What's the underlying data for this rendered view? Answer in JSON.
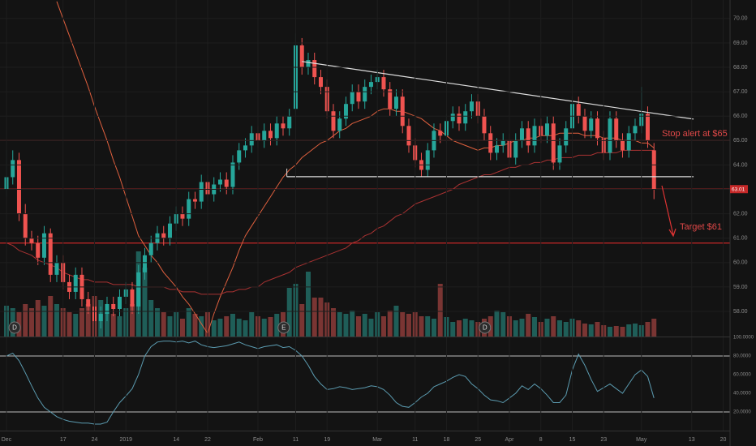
{
  "chart_data": {
    "type": "candlestick",
    "xlim": [
      -1.03,
      115.1
    ],
    "xticks": [
      {
        "value": 0,
        "label": "Dec"
      },
      {
        "value": 9,
        "label": "17"
      },
      {
        "value": 14,
        "label": "24"
      },
      {
        "value": 19,
        "label": "2019"
      },
      {
        "value": 27,
        "label": "14"
      },
      {
        "value": 32,
        "label": "22"
      },
      {
        "value": 40,
        "label": "Feb"
      },
      {
        "value": 46,
        "label": "11"
      },
      {
        "value": 51,
        "label": "19"
      },
      {
        "value": 59,
        "label": "Mar"
      },
      {
        "value": 65,
        "label": "11"
      },
      {
        "value": 70,
        "label": "18"
      },
      {
        "value": 75,
        "label": "25"
      },
      {
        "value": 80,
        "label": "Apr"
      },
      {
        "value": 85,
        "label": "8"
      },
      {
        "value": 90,
        "label": "15"
      },
      {
        "value": 95,
        "label": "23"
      },
      {
        "value": 101,
        "label": "May"
      },
      {
        "value": 109,
        "label": "13"
      },
      {
        "value": 114,
        "label": "20"
      }
    ],
    "ylim": [
      56.97,
      70.76
    ],
    "yticks": [
      {
        "value": 58,
        "label": "58.00"
      },
      {
        "value": 59,
        "label": "59.00"
      },
      {
        "value": 60,
        "label": "60.00"
      },
      {
        "value": 61,
        "label": "61.00"
      },
      {
        "value": 62,
        "label": "62.00"
      },
      {
        "value": 63,
        "label": "63.00"
      },
      {
        "value": 64,
        "label": "64.00"
      },
      {
        "value": 65,
        "label": "65.00"
      },
      {
        "value": 66,
        "label": "66.00"
      },
      {
        "value": 67,
        "label": "67.00"
      },
      {
        "value": 68,
        "label": "68.00"
      },
      {
        "value": 69,
        "label": "69.00"
      },
      {
        "value": 70,
        "label": "70.00"
      }
    ],
    "grid": true,
    "up_color": "#26a69a",
    "down_color": "#ef5350",
    "open": [
      63.0,
      63.5,
      64.2,
      62.0,
      61.0,
      60.8,
      60.2,
      61.2,
      59.5,
      60.0,
      59.2,
      58.8,
      59.5,
      58.5,
      58.2,
      57.6,
      57.9,
      58.3,
      58.1,
      58.6,
      58.9,
      58.2,
      59.6,
      60.3,
      60.8,
      61.2,
      61.0,
      61.6,
      62.0,
      61.8,
      62.6,
      62.5,
      63.3,
      62.8,
      63.2,
      63.4,
      63.1,
      64.1,
      64.6,
      64.8,
      65.3,
      65.0,
      65.4,
      65.1,
      65.7,
      65.5,
      66.3,
      68.9,
      68.0,
      68.3,
      67.6,
      67.2,
      66.2,
      65.4,
      65.9,
      66.5,
      67.0,
      66.6,
      67.2,
      67.4,
      67.6,
      67.1,
      66.3,
      66.8,
      65.6,
      64.8,
      64.2,
      63.8,
      64.6,
      65.4,
      65.2,
      65.8,
      66.1,
      65.7,
      66.2,
      66.6,
      66.0,
      65.3,
      64.5,
      64.8,
      65.0,
      64.3,
      65.0,
      65.5,
      64.8,
      65.6,
      65.2,
      65.7,
      64.1,
      64.8,
      65.5,
      66.5,
      66.0,
      65.4,
      65.9,
      65.1,
      64.5,
      65.9,
      65.0,
      64.6,
      65.3,
      65.6,
      66.1,
      64.6
    ],
    "high": [
      64.6,
      64.6,
      64.5,
      62.4,
      61.3,
      61.1,
      61.5,
      61.4,
      60.3,
      60.3,
      59.5,
      59.8,
      59.8,
      58.8,
      58.5,
      58.2,
      58.6,
      58.6,
      58.9,
      59.2,
      59.2,
      59.9,
      60.6,
      61.1,
      61.5,
      61.5,
      61.9,
      62.3,
      62.3,
      62.9,
      62.9,
      63.6,
      63.6,
      63.5,
      63.7,
      63.7,
      64.4,
      64.9,
      65.1,
      65.6,
      65.6,
      65.7,
      65.7,
      66.0,
      66.0,
      66.3,
      69.4,
      69.2,
      68.6,
      68.6,
      67.9,
      67.5,
      66.5,
      66.2,
      66.8,
      67.3,
      67.3,
      67.5,
      67.7,
      67.9,
      67.9,
      67.4,
      67.1,
      67.1,
      65.9,
      65.1,
      64.5,
      64.9,
      65.7,
      65.7,
      66.1,
      66.4,
      66.4,
      66.5,
      66.9,
      66.9,
      66.3,
      65.6,
      65.1,
      65.3,
      65.3,
      65.3,
      65.8,
      65.8,
      65.9,
      65.9,
      66.0,
      66.0,
      65.1,
      65.8,
      66.8,
      66.8,
      66.3,
      66.2,
      66.2,
      65.4,
      66.2,
      66.2,
      65.3,
      65.6,
      65.9,
      67.2,
      66.4,
      64.9
    ],
    "low": [
      62.7,
      63.2,
      61.7,
      60.7,
      60.5,
      59.9,
      59.9,
      59.2,
      59.2,
      58.9,
      58.5,
      58.5,
      58.2,
      57.9,
      57.3,
      57.3,
      57.6,
      57.8,
      57.8,
      58.3,
      57.9,
      57.9,
      59.3,
      60.0,
      60.5,
      60.7,
      60.7,
      61.3,
      61.5,
      61.5,
      62.2,
      62.2,
      62.5,
      62.5,
      62.9,
      62.8,
      62.8,
      63.8,
      64.3,
      64.5,
      64.7,
      64.7,
      64.8,
      64.8,
      65.2,
      65.2,
      66.0,
      67.7,
      67.7,
      67.3,
      66.9,
      65.9,
      65.1,
      65.1,
      65.6,
      66.2,
      66.3,
      66.3,
      66.9,
      67.1,
      66.8,
      66.0,
      66.0,
      65.3,
      64.5,
      63.9,
      63.5,
      63.5,
      64.3,
      64.9,
      64.9,
      65.5,
      65.4,
      65.4,
      65.9,
      65.7,
      65.0,
      64.2,
      64.2,
      64.5,
      64.0,
      64.0,
      64.7,
      64.5,
      64.5,
      64.9,
      64.9,
      63.8,
      63.8,
      64.5,
      65.2,
      65.7,
      65.1,
      65.1,
      64.8,
      64.2,
      64.2,
      64.7,
      64.3,
      64.3,
      65.0,
      65.3,
      64.7,
      62.6
    ],
    "close": [
      63.5,
      64.2,
      62.0,
      61.0,
      60.8,
      60.2,
      61.2,
      59.5,
      60.0,
      59.2,
      58.8,
      59.5,
      58.5,
      58.2,
      57.6,
      57.9,
      58.3,
      58.1,
      58.6,
      58.9,
      58.2,
      59.6,
      60.3,
      60.8,
      61.2,
      61.0,
      61.6,
      62.0,
      61.8,
      62.6,
      62.5,
      63.3,
      62.8,
      63.2,
      63.4,
      63.1,
      64.1,
      64.6,
      64.8,
      65.3,
      65.0,
      65.4,
      65.1,
      65.7,
      65.5,
      66.0,
      68.9,
      68.0,
      68.3,
      67.6,
      67.2,
      66.2,
      65.4,
      65.9,
      66.5,
      67.0,
      66.6,
      67.2,
      67.4,
      67.6,
      67.1,
      66.3,
      66.8,
      65.6,
      64.8,
      64.2,
      63.8,
      64.6,
      65.4,
      65.2,
      65.8,
      66.1,
      65.7,
      66.2,
      66.6,
      66.0,
      65.3,
      64.5,
      64.8,
      65.0,
      64.3,
      65.0,
      65.5,
      64.8,
      65.6,
      65.2,
      65.7,
      64.1,
      64.8,
      65.5,
      66.5,
      66.0,
      65.4,
      65.9,
      65.1,
      64.5,
      65.9,
      65.0,
      64.6,
      65.3,
      65.6,
      66.1,
      65.0,
      63.01
    ],
    "volume": {
      "up_color": "#1f5e58",
      "down_color": "#7a3533",
      "values": [
        38,
        35,
        30,
        40,
        35,
        45,
        38,
        50,
        40,
        35,
        30,
        28,
        35,
        40,
        50,
        45,
        30,
        28,
        25,
        35,
        40,
        105,
        85,
        45,
        35,
        30,
        25,
        30,
        22,
        35,
        28,
        25,
        30,
        20,
        22,
        25,
        28,
        22,
        20,
        30,
        25,
        22,
        24,
        28,
        30,
        60,
        65,
        40,
        80,
        48,
        48,
        42,
        35,
        30,
        28,
        32,
        25,
        28,
        22,
        30,
        25,
        32,
        38,
        30,
        28,
        30,
        25,
        25,
        22,
        65,
        24,
        18,
        20,
        22,
        20,
        18,
        22,
        25,
        32,
        30,
        25,
        20,
        22,
        28,
        24,
        18,
        22,
        25,
        20,
        18,
        22,
        20,
        16,
        15,
        18,
        14,
        12,
        13,
        12,
        15,
        16,
        14,
        18,
        22
      ]
    },
    "moving_averages": [
      {
        "color": "#e0603e",
        "values": [
          null,
          null,
          null,
          null,
          null,
          null,
          null,
          null,
          70.7,
          70.0,
          69.3,
          68.6,
          67.9,
          67.2,
          66.4,
          65.7,
          65.0,
          64.2,
          63.5,
          62.7,
          61.9,
          61.1,
          60.7,
          60.3,
          60.0,
          59.6,
          59.3,
          59.0,
          58.6,
          58.3,
          57.9,
          57.5,
          57.1,
          57.9,
          58.6,
          59.2,
          59.8,
          60.5,
          61.1,
          61.5,
          61.9,
          62.3,
          62.7,
          63.1,
          63.5,
          63.8,
          64.0,
          64.3,
          64.5,
          64.7,
          64.9,
          65.0,
          65.2,
          65.4,
          65.5,
          65.7,
          65.8,
          65.9,
          66.0,
          66.2,
          66.3,
          66.3,
          66.2,
          66.2,
          66.1,
          66.0,
          65.9,
          65.7,
          65.5,
          65.4,
          65.2,
          65.0,
          64.9,
          64.8,
          64.7,
          64.6,
          64.7,
          64.7,
          64.8,
          64.8,
          64.9,
          65.0,
          65.0,
          65.1,
          65.1,
          65.2,
          65.2,
          65.2,
          65.3,
          65.3,
          65.3,
          65.3,
          65.2,
          65.2,
          65.2,
          65.1,
          65.1,
          65.1,
          65.0,
          65.0,
          65.0,
          64.9,
          64.9,
          64.7
        ]
      },
      {
        "color": "#a83232",
        "values": [
          60.8,
          60.7,
          60.5,
          60.4,
          60.3,
          60.1,
          60.0,
          59.9,
          59.8,
          59.6,
          59.5,
          59.4,
          59.3,
          59.3,
          59.2,
          59.2,
          59.2,
          59.1,
          59.1,
          59.1,
          59.1,
          59.0,
          59.0,
          59.0,
          59.0,
          59.0,
          58.9,
          58.9,
          58.8,
          58.8,
          58.8,
          58.7,
          58.7,
          58.7,
          58.7,
          58.8,
          58.8,
          58.9,
          58.9,
          59.0,
          59.0,
          59.2,
          59.3,
          59.4,
          59.5,
          59.6,
          59.8,
          59.9,
          60.0,
          60.1,
          60.2,
          60.3,
          60.4,
          60.5,
          60.6,
          60.8,
          60.9,
          61.1,
          61.2,
          61.4,
          61.5,
          61.7,
          61.9,
          62.0,
          62.2,
          62.4,
          62.5,
          62.6,
          62.7,
          62.8,
          62.9,
          63.0,
          63.2,
          63.3,
          63.4,
          63.5,
          63.6,
          63.6,
          63.7,
          63.8,
          63.9,
          63.9,
          64.0,
          64.0,
          64.1,
          64.1,
          64.2,
          64.2,
          64.3,
          64.3,
          64.3,
          64.4,
          64.4,
          64.4,
          64.5,
          64.5,
          64.5,
          64.5,
          64.6,
          64.6,
          64.6,
          64.6,
          64.6,
          64.6
        ]
      }
    ],
    "levels": [
      {
        "value": 63.01,
        "color": "#b22a2a"
      },
      {
        "value": 65.0,
        "color": "#8c2a2a"
      },
      {
        "value": 60.8,
        "color": "#c62828"
      }
    ],
    "trendlines": [
      {
        "x": [
          47,
          109.3
        ],
        "y": [
          68.24,
          65.88
        ],
        "color": "#dddddd"
      },
      {
        "x": [
          44.6,
          109.3
        ],
        "y": [
          63.52,
          63.52
        ],
        "color": "#dddddd"
      }
    ],
    "price_label": {
      "value": 63.01,
      "label": "63.01"
    },
    "annotations": [
      {
        "text": "Stop alert at $65"
      },
      {
        "text": "Target $61"
      }
    ],
    "events": [
      {
        "x": 1.3,
        "label": "D"
      },
      {
        "x": 44.1,
        "label": "E"
      },
      {
        "x": 76.1,
        "label": "D"
      }
    ],
    "oscillator": {
      "color": "#5b9bb0",
      "ylim": [
        0,
        100
      ],
      "yticks": [
        {
          "value": 20,
          "label": "20.0000"
        },
        {
          "value": 40,
          "label": "40.0000"
        },
        {
          "value": 60,
          "label": "60.0000"
        },
        {
          "value": 80,
          "label": "80.0000"
        },
        {
          "value": 100,
          "label": "100.0000"
        }
      ],
      "levels": [
        80,
        20
      ],
      "values": [
        80,
        83,
        75,
        62,
        48,
        35,
        25,
        20,
        15,
        12,
        10,
        9,
        8,
        8,
        7,
        7,
        9,
        20,
        30,
        37,
        45,
        60,
        80,
        90,
        95,
        96,
        96,
        95,
        96,
        94,
        96,
        92,
        90,
        89,
        90,
        91,
        93,
        95,
        92,
        90,
        88,
        90,
        91,
        92,
        89,
        90,
        86,
        80,
        70,
        58,
        50,
        44,
        45,
        47,
        46,
        44,
        45,
        46,
        48,
        47,
        44,
        38,
        30,
        26,
        25,
        30,
        36,
        40,
        47,
        50,
        53,
        57,
        60,
        58,
        50,
        45,
        38,
        33,
        32,
        30,
        35,
        40,
        48,
        44,
        50,
        45,
        38,
        30,
        30,
        38,
        65,
        82,
        70,
        55,
        42,
        46,
        50,
        45,
        40,
        50,
        60,
        65,
        58,
        35
      ]
    }
  }
}
